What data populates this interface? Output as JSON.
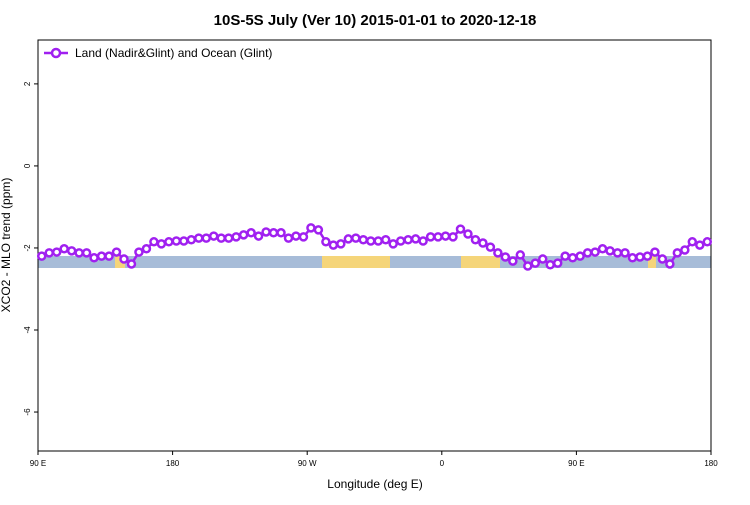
{
  "chart_data": {
    "type": "line",
    "title": "10S-5S July (Ver 10)   2015-01-01 to 2020-12-18",
    "x_label": "Longitude (deg E)",
    "y_label": "XCO2 - MLO trend (ppm)",
    "xlim": [
      90,
      540
    ],
    "ylim": [
      -6.95,
      3.07
    ],
    "xticks": [
      {
        "value": 90,
        "label": "90 E"
      },
      180,
      {
        "value": 270,
        "label": "90 W"
      },
      {
        "value": 360,
        "label": "0"
      },
      {
        "value": 450,
        "label": "90 E"
      },
      {
        "value": 540,
        "label": "180"
      }
    ],
    "yticks": [
      2,
      0,
      -2,
      -4,
      -6
    ],
    "legend": "top-left",
    "x": [
      92.5,
      97.5,
      102.5,
      107.5,
      112.5,
      117.5,
      122.5,
      127.5,
      132.5,
      137.5,
      142.5,
      147.5,
      152.5,
      157.5,
      162.5,
      167.5,
      172.5,
      177.5,
      182.5,
      187.5,
      192.5,
      197.5,
      202.5,
      207.5,
      212.5,
      217.5,
      222.5,
      227.5,
      232.5,
      237.5,
      242.5,
      247.5,
      252.5,
      257.5,
      262.5,
      267.5,
      272.5,
      277.5,
      282.5,
      287.5,
      292.5,
      297.5,
      302.5,
      307.5,
      312.5,
      317.5,
      322.5,
      327.5,
      332.5,
      337.5,
      342.5,
      347.5,
      352.5,
      357.5,
      362.5,
      367.5,
      372.5,
      377.5,
      382.5,
      387.5,
      392.5,
      397.5,
      402.5,
      407.5,
      412.5,
      417.5,
      422.5,
      427.5,
      432.5,
      437.5,
      442.5,
      447.5,
      452.5,
      457.5,
      462.5,
      467.5,
      472.5,
      477.5,
      482.5,
      487.5,
      492.5,
      497.5,
      502.5,
      507.5,
      512.5,
      517.5,
      522.5,
      527.5,
      532.5,
      537.5
    ],
    "series": [
      {
        "name": "Land (Nadir&Glint) and Ocean (Glint)",
        "color": "#a020f0",
        "values": [
          -2.2,
          -2.12,
          -2.1,
          -2.02,
          -2.07,
          -2.12,
          -2.12,
          -2.24,
          -2.2,
          -2.2,
          -2.1,
          -2.27,
          -2.39,
          -2.1,
          -2.02,
          -1.85,
          -1.9,
          -1.85,
          -1.83,
          -1.83,
          -1.8,
          -1.76,
          -1.76,
          -1.71,
          -1.76,
          -1.76,
          -1.73,
          -1.68,
          -1.63,
          -1.71,
          -1.61,
          -1.63,
          -1.63,
          -1.76,
          -1.71,
          -1.73,
          -1.51,
          -1.56,
          -1.85,
          -1.93,
          -1.9,
          -1.78,
          -1.76,
          -1.8,
          -1.83,
          -1.83,
          -1.8,
          -1.9,
          -1.83,
          -1.8,
          -1.78,
          -1.83,
          -1.73,
          -1.73,
          -1.71,
          -1.73,
          -1.54,
          -1.66,
          -1.8,
          -1.88,
          -1.98,
          -2.12,
          -2.22,
          -2.32,
          -2.17,
          -2.44,
          -2.37,
          -2.27,
          -2.41,
          -2.37,
          -2.2,
          -2.24,
          -2.2,
          -2.12,
          -2.1,
          -2.02,
          -2.07,
          -2.12,
          -2.12,
          -2.24,
          -2.22,
          -2.2,
          -2.1,
          -2.27,
          -2.39,
          -2.12,
          -2.05,
          -1.85,
          -1.93,
          -1.85
        ]
      }
    ]
  }
}
